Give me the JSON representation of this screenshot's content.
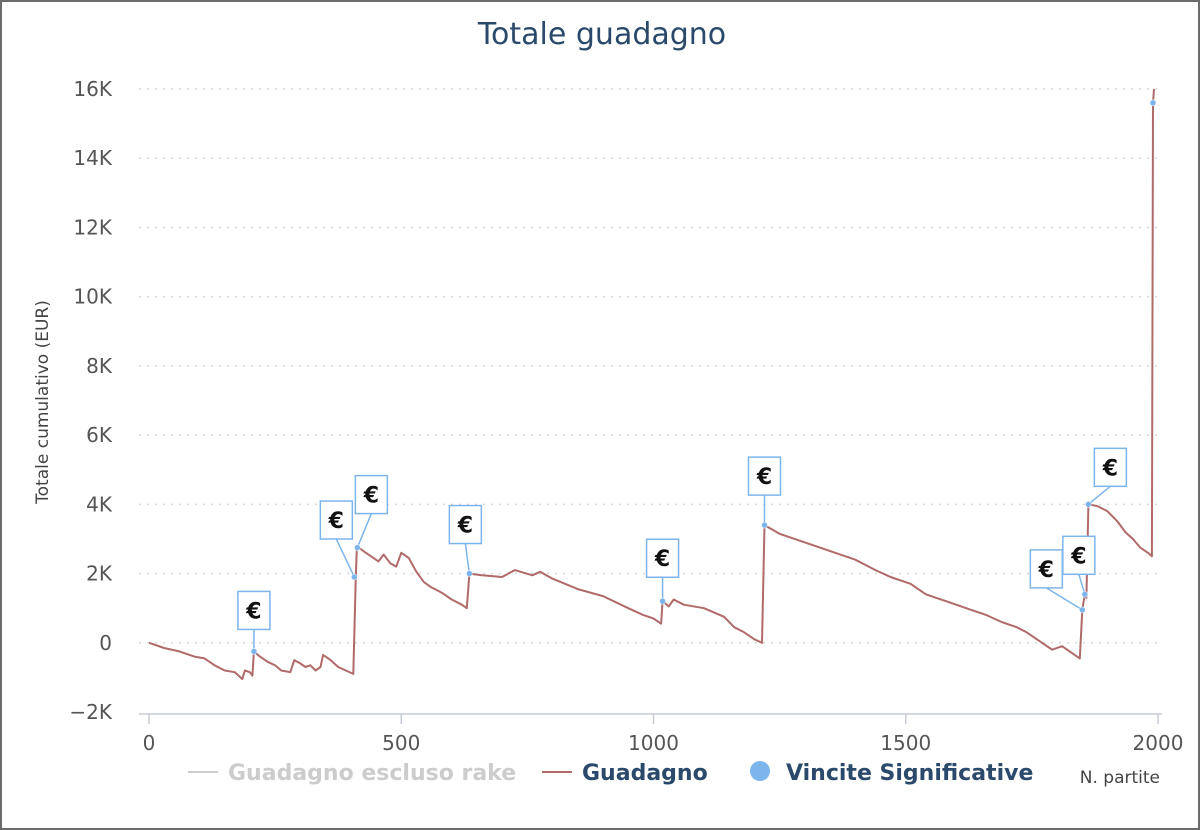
{
  "chart_data": {
    "type": "line",
    "title": "Totale guadagno",
    "xlabel": "N. partite",
    "ylabel": "Totale cumulativo (EUR)",
    "xlim": [
      0,
      2000
    ],
    "ylim": [
      -2000,
      16000
    ],
    "x_ticks": [
      0,
      500,
      1000,
      1500,
      2000
    ],
    "x_tick_labels": [
      "0",
      "500",
      "1000",
      "1500",
      "2000"
    ],
    "y_ticks": [
      -2000,
      0,
      2000,
      4000,
      6000,
      8000,
      10000,
      12000,
      14000,
      16000
    ],
    "y_tick_labels": [
      "−2K",
      "0",
      "2K",
      "4K",
      "6K",
      "8K",
      "10K",
      "12K",
      "14K",
      "16K"
    ],
    "grid": "horizontal-dotted",
    "legend_placement": "bottom",
    "legend": [
      {
        "name": "Guadagno escluso rake",
        "color": "#cccccc",
        "marker": "line"
      },
      {
        "name": "Guadagno",
        "color": "#2b4a6b",
        "marker": "line",
        "line_color": "#b06a6a"
      },
      {
        "name": "Vincite Significative",
        "color": "#2b4a6b",
        "marker": "circle",
        "marker_color": "#7cb5ec"
      }
    ],
    "series": [
      {
        "name": "Guadagno",
        "color": "#b06a6a",
        "points": [
          [
            0,
            0
          ],
          [
            30,
            -150
          ],
          [
            60,
            -250
          ],
          [
            90,
            -400
          ],
          [
            110,
            -450
          ],
          [
            130,
            -650
          ],
          [
            150,
            -800
          ],
          [
            170,
            -850
          ],
          [
            185,
            -1050
          ],
          [
            190,
            -800
          ],
          [
            200,
            -850
          ],
          [
            205,
            -950
          ],
          [
            208,
            -250
          ],
          [
            220,
            -400
          ],
          [
            235,
            -550
          ],
          [
            250,
            -650
          ],
          [
            262,
            -800
          ],
          [
            280,
            -850
          ],
          [
            288,
            -500
          ],
          [
            300,
            -600
          ],
          [
            310,
            -700
          ],
          [
            320,
            -650
          ],
          [
            330,
            -800
          ],
          [
            340,
            -700
          ],
          [
            345,
            -350
          ],
          [
            360,
            -500
          ],
          [
            375,
            -700
          ],
          [
            390,
            -800
          ],
          [
            405,
            -900
          ],
          [
            410,
            1900
          ],
          [
            412,
            2800
          ],
          [
            425,
            2650
          ],
          [
            440,
            2500
          ],
          [
            455,
            2350
          ],
          [
            465,
            2550
          ],
          [
            478,
            2300
          ],
          [
            490,
            2200
          ],
          [
            500,
            2600
          ],
          [
            515,
            2450
          ],
          [
            530,
            2050
          ],
          [
            545,
            1750
          ],
          [
            560,
            1600
          ],
          [
            580,
            1450
          ],
          [
            600,
            1250
          ],
          [
            620,
            1100
          ],
          [
            630,
            1000
          ],
          [
            635,
            2000
          ],
          [
            660,
            1950
          ],
          [
            700,
            1900
          ],
          [
            725,
            2100
          ],
          [
            760,
            1950
          ],
          [
            775,
            2050
          ],
          [
            800,
            1850
          ],
          [
            850,
            1550
          ],
          [
            900,
            1350
          ],
          [
            950,
            1000
          ],
          [
            980,
            800
          ],
          [
            1000,
            700
          ],
          [
            1015,
            550
          ],
          [
            1018,
            1200
          ],
          [
            1030,
            1050
          ],
          [
            1040,
            1250
          ],
          [
            1060,
            1100
          ],
          [
            1100,
            1000
          ],
          [
            1140,
            750
          ],
          [
            1160,
            450
          ],
          [
            1180,
            300
          ],
          [
            1200,
            100
          ],
          [
            1215,
            0
          ],
          [
            1220,
            3400
          ],
          [
            1250,
            3150
          ],
          [
            1300,
            2900
          ],
          [
            1350,
            2650
          ],
          [
            1400,
            2400
          ],
          [
            1440,
            2100
          ],
          [
            1470,
            1900
          ],
          [
            1500,
            1750
          ],
          [
            1510,
            1700
          ],
          [
            1520,
            1600
          ],
          [
            1540,
            1400
          ],
          [
            1560,
            1300
          ],
          [
            1580,
            1200
          ],
          [
            1600,
            1100
          ],
          [
            1630,
            950
          ],
          [
            1660,
            800
          ],
          [
            1690,
            600
          ],
          [
            1720,
            450
          ],
          [
            1740,
            300
          ],
          [
            1760,
            100
          ],
          [
            1790,
            -200
          ],
          [
            1810,
            -100
          ],
          [
            1830,
            -300
          ],
          [
            1845,
            -450
          ],
          [
            1850,
            950
          ],
          [
            1855,
            1400
          ],
          [
            1858,
            1300
          ],
          [
            1862,
            4000
          ],
          [
            1880,
            3950
          ],
          [
            1900,
            3800
          ],
          [
            1920,
            3500
          ],
          [
            1935,
            3200
          ],
          [
            1950,
            3000
          ],
          [
            1965,
            2750
          ],
          [
            1980,
            2600
          ],
          [
            1988,
            2500
          ],
          [
            1990,
            15600
          ],
          [
            1992,
            16000
          ]
        ]
      }
    ],
    "significant_wins": {
      "name": "Vincite Significative",
      "color": "#7cb5ec",
      "marker_symbol": "€",
      "points": [
        [
          208,
          -250
        ],
        [
          407,
          1900
        ],
        [
          413,
          2750
        ],
        [
          635,
          2000
        ],
        [
          1018,
          1200
        ],
        [
          1220,
          3400
        ],
        [
          1850,
          950
        ],
        [
          1855,
          1400
        ],
        [
          1862,
          4000
        ],
        [
          1990,
          15600
        ]
      ]
    }
  }
}
